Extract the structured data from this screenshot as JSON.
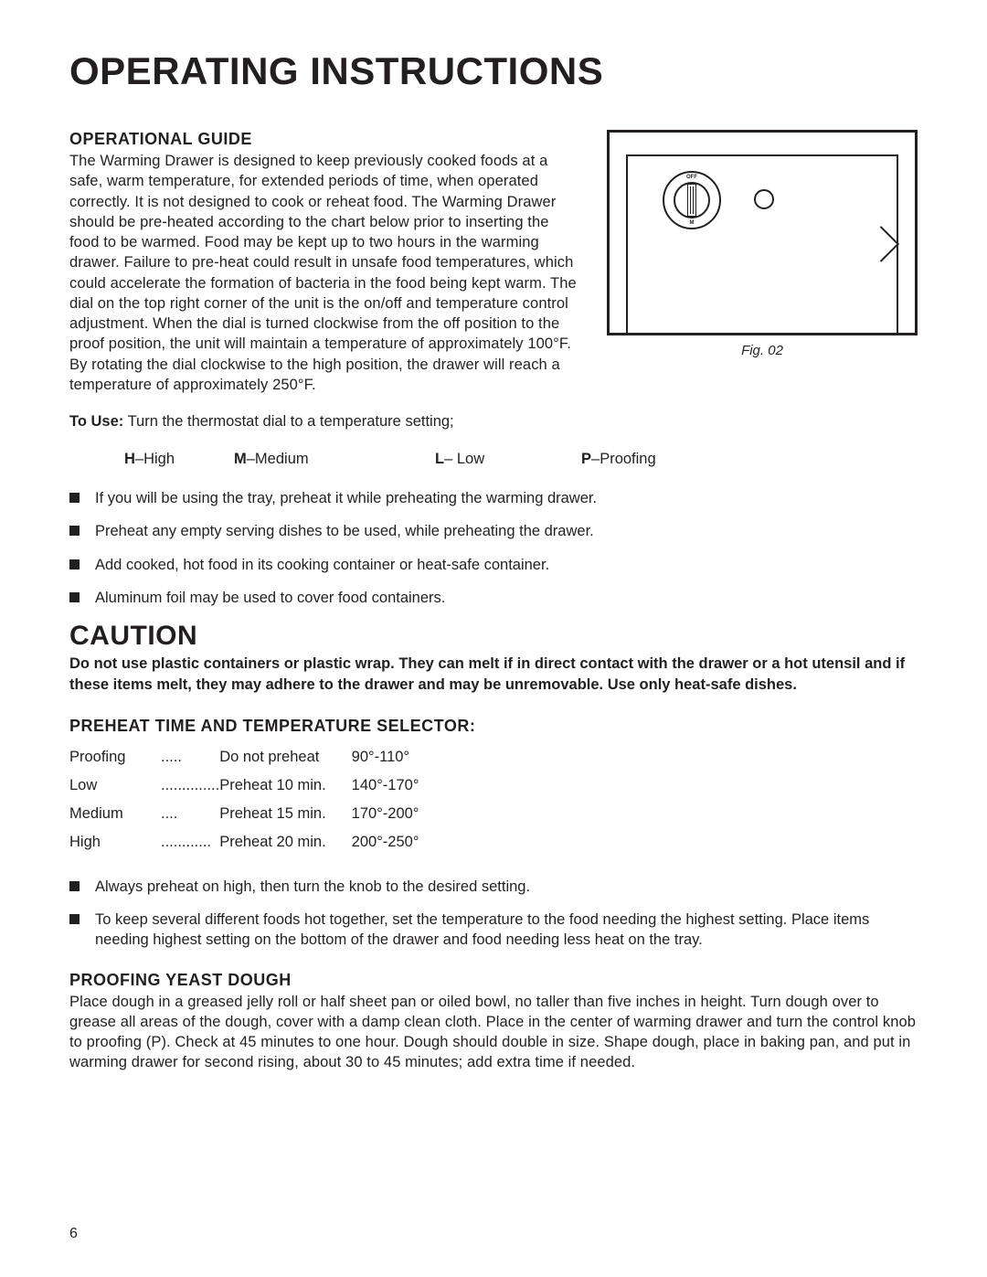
{
  "page": {
    "title": "OPERATING INSTRUCTIONS",
    "number": "6"
  },
  "figure": {
    "caption": "Fig. 02",
    "knob_top_label": "OFF",
    "knob_bottom_label": "M"
  },
  "operational_guide": {
    "heading": "OPERATIONAL GUIDE",
    "body": "The Warming Drawer is designed to keep previously cooked foods at a safe, warm temperature, for extended periods of time, when operated correctly. It is not designed to cook or reheat food.  The Warming Drawer should be pre-heated according to the chart below prior to inserting the food to be warmed.  Food may be kept up to two hours in the warming drawer.  Failure to pre-heat could result in unsafe food temperatures, which could accelerate the formation of bacteria in the food being kept warm.  The dial on the top right corner of the unit is the on/off and temperature control adjustment.  When the dial is turned clockwise from the off position to the proof position, the unit will maintain a temperature of approximately 100°F.  By rotating the dial clockwise to the high position, the drawer will reach a temperature of approximately 250°F.",
    "to_use_label": "To Use:",
    "to_use_text": " Turn the thermostat dial to a temperature setting;",
    "legend": {
      "h_bold": "H",
      "h_text": "–High",
      "m_bold": "M",
      "m_text": "–Medium",
      "l_bold": "L",
      "l_text": "– Low",
      "p_bold": "P",
      "p_text": "–Proofing"
    },
    "bullets": [
      "If you will be using the tray, preheat it while preheating the warming drawer.",
      "Preheat any empty serving dishes to be used, while preheating the drawer.",
      "Add cooked, hot food in its cooking container or heat-safe container.",
      "Aluminum foil may be used to cover food containers."
    ]
  },
  "caution": {
    "heading": "CAUTION",
    "text": "Do not use plastic containers or plastic wrap.  They can melt if in direct contact with the drawer or a hot utensil and if these items melt, they may  adhere to the drawer and may be unremovable.  Use only heat-safe dishes."
  },
  "preheat": {
    "heading": "PREHEAT TIME AND TEMPERATURE SELECTOR:",
    "rows": [
      {
        "mode": "Proofing",
        "dots": ".....",
        "instr": "Do not preheat",
        "range": "90°-110°"
      },
      {
        "mode": "Low",
        "dots": "..............",
        "instr": "Preheat 10 min.",
        "range": "140°-170°"
      },
      {
        "mode": "Medium ",
        "dots": "....",
        "instr": "Preheat 15 min.",
        "range": "170°-200°"
      },
      {
        "mode": "High",
        "dots": "............",
        "instr": "Preheat 20 min.",
        "range": "200°-250°"
      }
    ],
    "bullets": [
      "Always preheat on high, then turn the knob to the desired setting.",
      "To keep several different foods hot together, set the temperature to the food needing the highest setting.  Place items needing highest setting on the bottom of the drawer and food needing less heat on the tray."
    ]
  },
  "proofing": {
    "heading": "PROOFING YEAST DOUGH",
    "body": "Place dough in a greased jelly roll or half sheet pan or oiled bowl, no taller than five inches in height.  Turn dough over to grease all areas of the dough, cover with a damp clean cloth.  Place in the center of warming drawer and turn the control knob to proofing (P).  Check at 45 minutes to one hour.  Dough should double in size.  Shape dough, place in baking pan, and put in warming drawer for second rising, about 30 to 45 minutes; add extra time if needed."
  }
}
